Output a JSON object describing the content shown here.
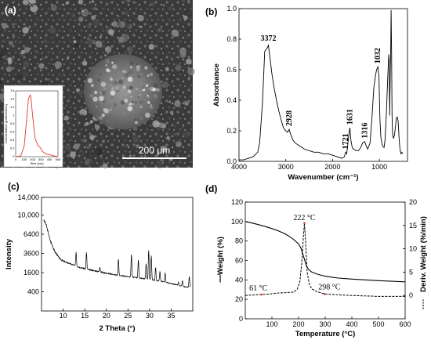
{
  "panels": {
    "a": {
      "label": "(a)",
      "scale_bar": "200 μm",
      "inset": {
        "ylabel": "Concentration (particles/mL)",
        "xlabel": "Size (nm)",
        "xticks": [
          "0",
          "100",
          "200",
          "300",
          "400",
          "500"
        ],
        "yticks": [
          "0",
          "0.2",
          "0.4",
          "0.6",
          "0.8",
          "1",
          "1.2",
          "1.4",
          "1.6"
        ]
      }
    },
    "b": {
      "label": "(b)"
    },
    "c": {
      "label": "(c)"
    },
    "d": {
      "label": "(d)"
    }
  },
  "chart_data": [
    {
      "id": "inset-a",
      "type": "line",
      "xlabel": "Size (nm)",
      "ylabel": "Concentration (particles/mL)",
      "xlim": [
        0,
        500
      ],
      "ylim": [
        0,
        1.6
      ],
      "color": "#e03a2a",
      "x": [
        0,
        60,
        100,
        130,
        150,
        170,
        180,
        200,
        230,
        260,
        290,
        320,
        360,
        400,
        450,
        500
      ],
      "y": [
        0,
        0.02,
        0.25,
        0.9,
        1.4,
        1.5,
        1.45,
        1.0,
        0.45,
        0.28,
        0.22,
        0.12,
        0.06,
        0.05,
        0.02,
        0.0
      ]
    },
    {
      "id": "ftir-b",
      "type": "line",
      "xlabel": "Wavenumber (cm⁻¹)",
      "ylabel": "Absorbance",
      "xlim": [
        4000,
        400
      ],
      "ylim": [
        0,
        1.0
      ],
      "xticks": [
        "4000",
        "3000",
        "2000",
        "1000"
      ],
      "yticks": [
        "0.0",
        "0.2",
        "0.4",
        "0.6",
        "0.8",
        "1.0"
      ],
      "annotations": [
        {
          "x": 3372,
          "y": 0.76,
          "text": "3372"
        },
        {
          "x": 2928,
          "y": 0.21,
          "text": "2928"
        },
        {
          "x": 1721,
          "y": 0.06,
          "text": "1721"
        },
        {
          "x": 1631,
          "y": 0.22,
          "text": "1631"
        },
        {
          "x": 1316,
          "y": 0.13,
          "text": "1316"
        },
        {
          "x": 1032,
          "y": 0.62,
          "text": "1032"
        }
      ],
      "x": [
        4000,
        3900,
        3800,
        3700,
        3600,
        3560,
        3500,
        3450,
        3400,
        3372,
        3330,
        3300,
        3250,
        3200,
        3150,
        3100,
        3050,
        3000,
        2960,
        2928,
        2900,
        2850,
        2800,
        2700,
        2600,
        2500,
        2400,
        2300,
        2200,
        2100,
        2000,
        1900,
        1800,
        1750,
        1721,
        1700,
        1680,
        1660,
        1631,
        1610,
        1580,
        1550,
        1500,
        1450,
        1400,
        1360,
        1316,
        1280,
        1250,
        1200,
        1160,
        1120,
        1080,
        1060,
        1032,
        1010,
        990,
        970,
        950,
        930,
        900,
        880,
        850,
        820,
        800,
        790,
        780,
        770,
        760,
        750,
        740,
        730,
        720,
        700,
        680,
        660,
        640,
        620,
        600,
        580,
        560,
        540,
        520,
        500
      ],
      "y": [
        0.01,
        0.01,
        0.02,
        0.03,
        0.06,
        0.12,
        0.38,
        0.72,
        0.74,
        0.76,
        0.66,
        0.58,
        0.48,
        0.4,
        0.33,
        0.27,
        0.22,
        0.2,
        0.19,
        0.21,
        0.18,
        0.14,
        0.12,
        0.1,
        0.08,
        0.07,
        0.06,
        0.06,
        0.05,
        0.05,
        0.04,
        0.03,
        0.02,
        0.03,
        0.06,
        0.05,
        0.1,
        0.16,
        0.22,
        0.14,
        0.09,
        0.08,
        0.07,
        0.07,
        0.09,
        0.12,
        0.13,
        0.1,
        0.08,
        0.12,
        0.28,
        0.48,
        0.57,
        0.6,
        0.62,
        0.55,
        0.28,
        0.16,
        0.12,
        0.1,
        0.09,
        0.14,
        0.32,
        0.56,
        0.7,
        0.66,
        0.3,
        0.55,
        0.68,
        0.99,
        0.72,
        0.3,
        0.18,
        0.15,
        0.17,
        0.22,
        0.28,
        0.29,
        0.26,
        0.15,
        0.08,
        0.05,
        0.06,
        0.05
      ]
    },
    {
      "id": "xrd-c",
      "type": "line",
      "xlabel": "2 Theta (°)",
      "ylabel": "Intensity",
      "xlim": [
        5,
        40
      ],
      "xticks": [
        "10",
        "15",
        "20",
        "25",
        "30",
        "35"
      ],
      "yticks": [
        "400",
        "1600",
        "3600",
        "6400",
        "10,000",
        "14,000"
      ],
      "scale": "sqrt",
      "ylim": [
        0,
        14000
      ],
      "baseline": [
        [
          5.5,
          9000
        ],
        [
          6,
          8200
        ],
        [
          7,
          5400
        ],
        [
          8,
          3900
        ],
        [
          9,
          3100
        ],
        [
          10,
          2700
        ],
        [
          12,
          2350
        ],
        [
          14,
          2050
        ],
        [
          16,
          1850
        ],
        [
          18,
          1700
        ],
        [
          20,
          1550
        ],
        [
          22,
          1420
        ],
        [
          24,
          1320
        ],
        [
          26,
          1250
        ],
        [
          28,
          1170
        ],
        [
          30,
          1080
        ],
        [
          32,
          980
        ],
        [
          34,
          880
        ],
        [
          36,
          760
        ],
        [
          38,
          640
        ],
        [
          39.5,
          600
        ]
      ],
      "peaks": [
        [
          13.0,
          3800
        ],
        [
          15.4,
          3700
        ],
        [
          18.5,
          2100
        ],
        [
          22.8,
          2900
        ],
        [
          25.8,
          3500
        ],
        [
          27.4,
          2800
        ],
        [
          29.2,
          2400
        ],
        [
          29.8,
          4000
        ],
        [
          30.4,
          3300
        ],
        [
          31.4,
          2100
        ],
        [
          32.4,
          1700
        ],
        [
          33.6,
          1600
        ],
        [
          36.7,
          900
        ],
        [
          37.6,
          1000
        ],
        [
          39.2,
          1300
        ]
      ]
    },
    {
      "id": "tga-d",
      "type": "line",
      "xlabel": "Temperature (°C)",
      "ylabel": "Weight (%)",
      "ylabel2": "Deriv. Weight (%/min)",
      "xlim": [
        0,
        600
      ],
      "ylim": [
        0,
        120
      ],
      "ylim2": [
        -5,
        20
      ],
      "xticks": [
        "100",
        "200",
        "300",
        "400",
        "500",
        "600"
      ],
      "yticks": [
        "0",
        "20",
        "40",
        "60",
        "80",
        "100",
        "120"
      ],
      "yticks2": [
        "0",
        "5",
        "10",
        "15",
        "20"
      ],
      "annotations": [
        {
          "x": 61,
          "y2": 0.2,
          "text": "61 °C"
        },
        {
          "x": 222,
          "y2": 15.5,
          "text": "222 °C"
        },
        {
          "x": 298,
          "y2": 0.3,
          "text": "298 °C"
        }
      ],
      "series": [
        {
          "axis": "left",
          "x": [
            0,
            25,
            50,
            75,
            100,
            125,
            150,
            175,
            200,
            210,
            220,
            230,
            240,
            250,
            275,
            300,
            325,
            350,
            400,
            450,
            500,
            550,
            600
          ],
          "y": [
            100,
            98.5,
            96.8,
            94.9,
            92.8,
            90.3,
            87.3,
            83.0,
            77.0,
            72.0,
            63.0,
            54.0,
            50.0,
            48.0,
            45.5,
            43.8,
            42.8,
            41.9,
            40.8,
            40.0,
            39.2,
            38.6,
            38.0
          ]
        },
        {
          "axis": "right",
          "x": [
            0,
            30,
            61,
            90,
            120,
            150,
            180,
            195,
            205,
            212,
            218,
            222,
            226,
            232,
            240,
            250,
            270,
            298,
            330,
            360,
            400,
            450,
            500,
            550,
            600
          ],
          "y": [
            0.0,
            0.1,
            0.2,
            0.3,
            0.5,
            0.6,
            0.7,
            1.3,
            3.0,
            7.0,
            12.5,
            15.5,
            12.0,
            5.0,
            2.5,
            1.4,
            0.8,
            0.3,
            0.2,
            0.1,
            0.0,
            -0.1,
            -0.2,
            -0.2,
            -0.2
          ]
        }
      ]
    }
  ]
}
